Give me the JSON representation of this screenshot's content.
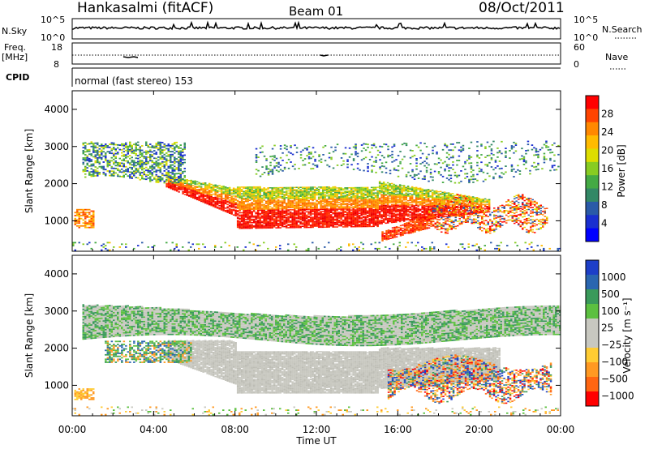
{
  "header": {
    "station": "Hankasalmi (fitACF)",
    "beam": "Beam 01",
    "date": "08/Oct/2011"
  },
  "top_panels": {
    "nsky_label": "N.Sky",
    "nsearch_label": "N.Search",
    "nsky_ticks": [
      "10^5",
      "10^0"
    ],
    "nsearch_ticks": [
      "10^5",
      "10^0"
    ],
    "freq_label_1": "Freq.",
    "freq_label_2": "[MHz]",
    "freq_ticks": [
      "18",
      "8"
    ],
    "nave_label": "Nave",
    "nave_ticks": [
      "60",
      "0"
    ],
    "cpid_label": "CPID",
    "cpid_text": "normal (fast stereo) 153"
  },
  "chart_data": [
    {
      "type": "heatmap",
      "name": "power",
      "ylabel": "Slant Range [km]",
      "ylim": [
        180,
        4500
      ],
      "yticks": [
        1000,
        2000,
        3000,
        4000
      ],
      "colorbar": {
        "label": "Power [dB]",
        "tick_labels": [
          "28",
          "24",
          "20",
          "16",
          "12",
          "8",
          "4"
        ],
        "colors": [
          "#ff0000",
          "#ff4400",
          "#ff8800",
          "#ffbb00",
          "#dddd00",
          "#88cc22",
          "#44aa44",
          "#338866",
          "#2a5aa8",
          "#1a2fd0",
          "#0000ff"
        ]
      }
    },
    {
      "type": "heatmap",
      "name": "velocity",
      "ylabel": "Slant Range [km]",
      "ylim": [
        180,
        4500
      ],
      "yticks": [
        1000,
        2000,
        3000,
        4000
      ],
      "xlabel": "Time UT",
      "xticks": [
        "00:00",
        "04:00",
        "08:00",
        "12:00",
        "16:00",
        "20:00",
        "00:00"
      ],
      "colorbar": {
        "label": "Velocity [m s⁻¹]",
        "tick_labels": [
          "1000",
          "500",
          "100",
          "25",
          "−25",
          "−100",
          "−500",
          "−1000"
        ],
        "colors": [
          "#1d3fc8",
          "#2a66b0",
          "#3a9a5a",
          "#5cc040",
          "#c8c8c0",
          "#c8c8c0",
          "#ffcc33",
          "#ff9922",
          "#ff6611",
          "#ff0000"
        ]
      }
    }
  ]
}
